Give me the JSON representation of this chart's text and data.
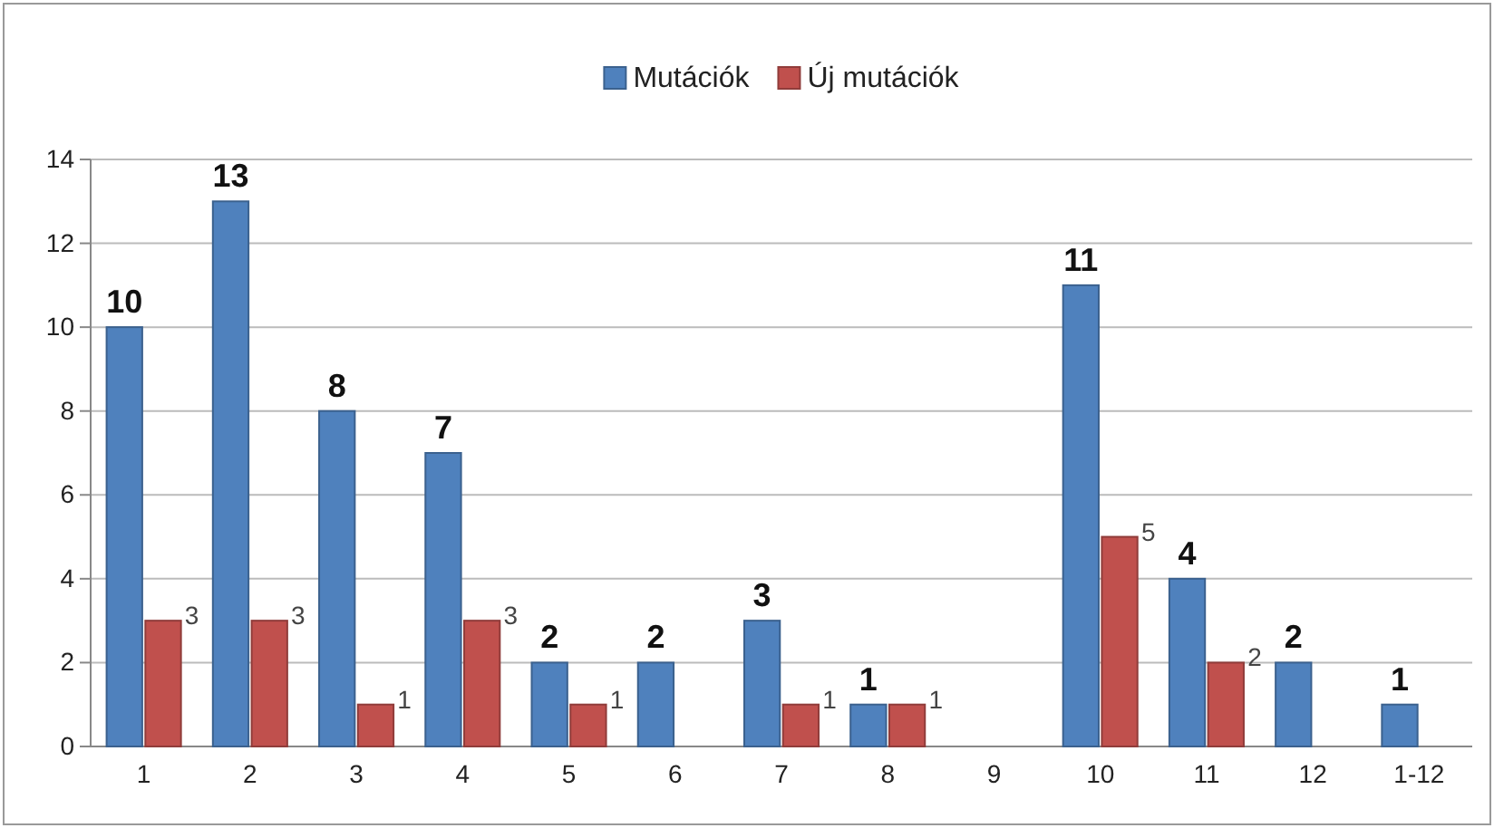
{
  "chart_data": {
    "type": "bar",
    "categories": [
      "1",
      "2",
      "3",
      "4",
      "5",
      "6",
      "7",
      "8",
      "9",
      "10",
      "11",
      "12",
      "1-12"
    ],
    "series": [
      {
        "name": "Mutációk",
        "color": "#4f81bd",
        "values": [
          10,
          13,
          8,
          7,
          2,
          2,
          3,
          1,
          null,
          11,
          4,
          2,
          1
        ],
        "value_labels": [
          "10",
          "13",
          "8",
          "7",
          "2",
          "2",
          "3",
          "1",
          null,
          "11",
          "4",
          "2",
          "1"
        ]
      },
      {
        "name": "Új mutációk",
        "color": "#c0504d",
        "values": [
          3,
          3,
          1,
          3,
          1,
          null,
          1,
          1,
          null,
          5,
          2,
          null,
          null
        ],
        "value_labels": [
          "3",
          "3",
          "1",
          "3",
          "1",
          null,
          "1",
          "1",
          null,
          "5",
          "2",
          null,
          null
        ]
      }
    ],
    "ylim": [
      0,
      14
    ],
    "yticks": [
      0,
      2,
      4,
      6,
      8,
      10,
      12,
      14
    ],
    "grid": "y",
    "legend": "top"
  }
}
